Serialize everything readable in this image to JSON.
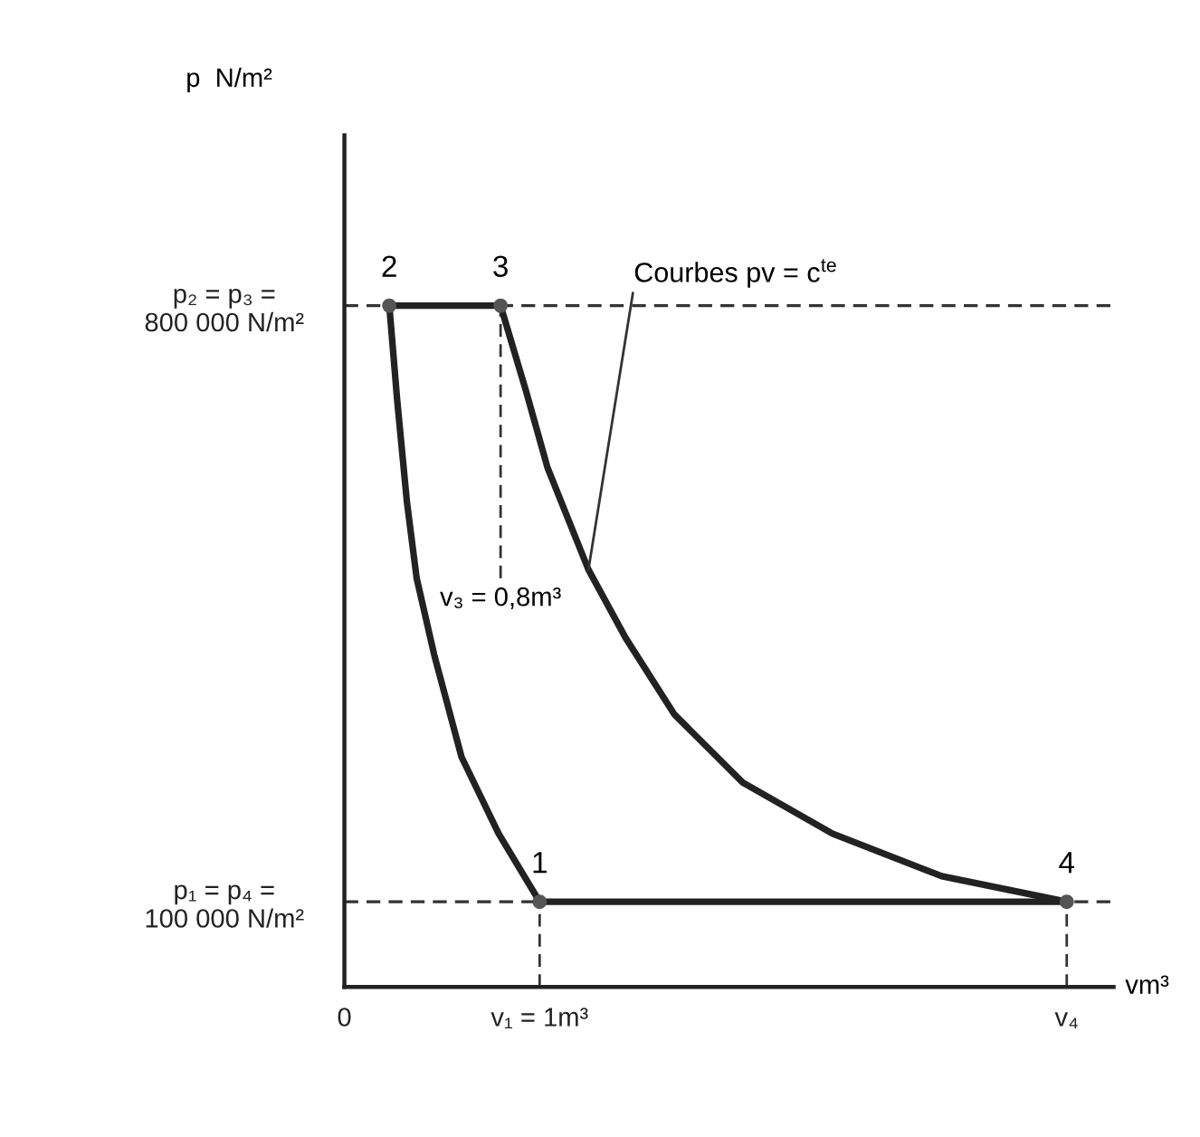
{
  "chart_data": {
    "type": "line",
    "xlabel": "vm³",
    "ylabel": "p  N/m²",
    "xlim": [
      0,
      3.94
    ],
    "ylim": [
      0,
      1000000
    ],
    "xticks": [
      0,
      {
        "value": 1,
        "label": "v₁ = 1m³"
      },
      {
        "value": 3.7,
        "label": "v₄"
      }
    ],
    "yticks": [
      {
        "value": 100000,
        "label": "p₁ = p₄ =\n100 000 N/m²"
      },
      {
        "value": 800000,
        "label": "p₂ = p₃ =\n800 000 N/m²"
      }
    ],
    "series": [
      {
        "color": "#222222",
        "marker": "none",
        "x": [
          0.23,
          0.27,
          0.32,
          0.37,
          0.46,
          0.6,
          0.79,
          1
        ],
        "values": [
          800000,
          690000,
          570000,
          480000,
          390000,
          270000,
          180000,
          100000
        ]
      },
      {
        "color": "#222222",
        "marker": "none",
        "x": [
          0.23,
          0.8
        ],
        "values": [
          800000,
          800000
        ]
      },
      {
        "color": "#222222",
        "marker": "none",
        "x": [
          0.8,
          0.93,
          1.04,
          1.25,
          1.44,
          1.69,
          2.04,
          2.5,
          3.06,
          3.7
        ],
        "values": [
          800000,
          700000,
          610000,
          490000,
          410000,
          320000,
          240000,
          180000,
          130000,
          100000
        ]
      },
      {
        "color": "#222222",
        "marker": "none",
        "x": [
          1,
          3.7
        ],
        "values": [
          100000,
          100000
        ]
      },
      {
        "type": "scatter",
        "color": "#555555",
        "marker": "circle",
        "x": [
          1,
          0.23,
          0.8,
          3.7
        ],
        "values": [
          100000,
          800000,
          800000,
          100000
        ]
      }
    ],
    "ref_lines": [
      {
        "axis": "y",
        "value": 800000,
        "line_style": "dashed"
      },
      {
        "axis": "y",
        "value": 100000,
        "line_style": "dashed"
      },
      {
        "axis": "x",
        "value": 0.8,
        "line_style": "dashed",
        "label": "v₃ = 0,8m³"
      },
      {
        "axis": "x",
        "value": 1,
        "line_style": "dashed"
      },
      {
        "axis": "x",
        "value": 3.7,
        "line_style": "dashed"
      }
    ],
    "annotations": [
      {
        "text": "1",
        "x": 1,
        "y": 100000
      },
      {
        "text": "2",
        "x": 0.23,
        "y": 800000
      },
      {
        "text": "3",
        "x": 0.8,
        "y": 800000
      },
      {
        "text": "4",
        "x": 3.7,
        "y": 100000
      },
      {
        "text": "Courbes pv = c$^{te}$",
        "x": 1.25,
        "y": 490000
      }
    ],
    "grid": false,
    "legend": false
  }
}
